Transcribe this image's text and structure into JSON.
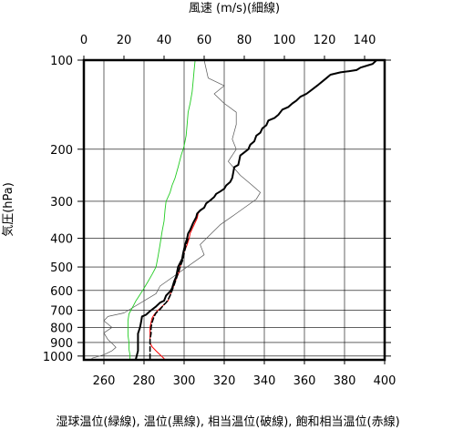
{
  "chart_data": {
    "type": "line",
    "title_top": "風速 (m/s)(細線)",
    "ylabel": "気圧(hPa)",
    "xlabel": "湿球温位(緑線), 温位(黒線), 相当温位(破線), 飽和相当温位(赤線)",
    "y_scale": "log",
    "y_range": [
      1030,
      100
    ],
    "y_ticks": [
      100,
      200,
      300,
      400,
      500,
      600,
      700,
      800,
      900,
      1000
    ],
    "x_bottom_range": [
      250,
      400
    ],
    "x_bottom_ticks": [
      260,
      280,
      300,
      320,
      340,
      360,
      380,
      400
    ],
    "x_top_range": [
      0,
      150
    ],
    "x_top_ticks": [
      0,
      20,
      40,
      60,
      80,
      100,
      120,
      140
    ],
    "colors": {
      "wind": "#555555",
      "wet_bulb": "#22cc22",
      "theta": "#000000",
      "theta_e": "#000000",
      "theta_es": "#ff0000"
    },
    "series": [
      {
        "key": "wind",
        "axis": "top",
        "points": [
          [
            4,
            1018
          ],
          [
            10,
            990
          ],
          [
            14,
            960
          ],
          [
            16,
            935
          ],
          [
            14,
            905
          ],
          [
            12,
            880
          ],
          [
            10,
            835
          ],
          [
            14,
            800
          ],
          [
            10,
            760
          ],
          [
            12,
            735
          ],
          [
            20,
            715
          ],
          [
            36,
            615
          ],
          [
            38,
            580
          ],
          [
            60,
            455
          ],
          [
            58,
            420
          ],
          [
            62,
            395
          ],
          [
            68,
            360
          ],
          [
            76,
            330
          ],
          [
            86,
            295
          ],
          [
            88,
            280
          ],
          [
            84,
            265
          ],
          [
            78,
            245
          ],
          [
            72,
            220
          ],
          [
            76,
            200
          ],
          [
            74,
            185
          ],
          [
            76,
            165
          ],
          [
            76,
            150
          ],
          [
            70,
            140
          ],
          [
            65,
            130
          ],
          [
            70,
            122
          ],
          [
            62,
            115
          ],
          [
            60,
            100
          ]
        ]
      },
      {
        "key": "wet_bulb",
        "axis": "bottom",
        "points": [
          [
            273,
            1020
          ],
          [
            273,
            990
          ],
          [
            272.5,
            950
          ],
          [
            272.5,
            900
          ],
          [
            272,
            850
          ],
          [
            272,
            800
          ],
          [
            272,
            760
          ],
          [
            272.5,
            720
          ],
          [
            274,
            690
          ],
          [
            276,
            650
          ],
          [
            278,
            620
          ],
          [
            280,
            590
          ],
          [
            282,
            560
          ],
          [
            284,
            530
          ],
          [
            286,
            500
          ],
          [
            287,
            460
          ],
          [
            288,
            420
          ],
          [
            289,
            380
          ],
          [
            290,
            350
          ],
          [
            290.5,
            320
          ],
          [
            291,
            300
          ],
          [
            293,
            280
          ],
          [
            294,
            265
          ],
          [
            295.5,
            250
          ],
          [
            297,
            230
          ],
          [
            298.5,
            210
          ],
          [
            300,
            195
          ],
          [
            301,
            180
          ],
          [
            301.5,
            165
          ],
          [
            302,
            150
          ],
          [
            303,
            140
          ],
          [
            304,
            128
          ],
          [
            304.5,
            118
          ],
          [
            305,
            108
          ],
          [
            305.5,
            100
          ]
        ]
      },
      {
        "key": "theta",
        "axis": "bottom",
        "points": [
          [
            276,
            1020
          ],
          [
            276.5,
            990
          ],
          [
            277,
            960
          ],
          [
            277,
            920
          ],
          [
            277,
            880
          ],
          [
            277,
            840
          ],
          [
            278,
            800
          ],
          [
            278.5,
            770
          ],
          [
            279,
            735
          ],
          [
            281,
            725
          ],
          [
            283,
            705
          ],
          [
            286,
            680
          ],
          [
            288,
            660
          ],
          [
            290,
            650
          ],
          [
            291,
            625
          ],
          [
            293,
            605
          ],
          [
            294,
            590
          ],
          [
            295,
            560
          ],
          [
            296,
            540
          ],
          [
            297,
            500
          ],
          [
            299,
            470
          ],
          [
            299.5,
            450
          ],
          [
            300.5,
            420
          ],
          [
            301.5,
            400
          ],
          [
            302,
            385
          ],
          [
            303,
            375
          ],
          [
            304.5,
            355
          ],
          [
            306,
            340
          ],
          [
            306.5,
            330
          ],
          [
            308,
            322
          ],
          [
            310,
            315
          ],
          [
            311,
            305
          ],
          [
            313,
            298
          ],
          [
            315,
            290
          ],
          [
            316,
            283
          ],
          [
            318,
            278
          ],
          [
            320,
            272
          ],
          [
            321,
            265
          ],
          [
            323,
            258
          ],
          [
            324,
            250
          ],
          [
            324.5,
            240
          ],
          [
            325,
            230
          ],
          [
            327,
            226
          ],
          [
            327.5,
            218
          ],
          [
            328,
            210
          ],
          [
            330,
            205
          ],
          [
            332,
            200
          ],
          [
            333,
            193
          ],
          [
            335,
            188
          ],
          [
            336,
            180
          ],
          [
            338,
            176
          ],
          [
            339,
            170
          ],
          [
            341,
            166
          ],
          [
            342,
            160
          ],
          [
            345,
            157
          ],
          [
            347,
            153
          ],
          [
            349,
            147
          ],
          [
            352,
            144
          ],
          [
            354,
            140
          ],
          [
            356,
            137
          ],
          [
            358,
            133
          ],
          [
            361,
            130
          ],
          [
            363,
            127
          ],
          [
            365,
            124
          ],
          [
            367,
            121
          ],
          [
            369,
            118
          ],
          [
            371,
            115
          ],
          [
            373,
            112
          ],
          [
            378,
            110
          ],
          [
            382,
            109
          ],
          [
            386,
            108
          ],
          [
            388,
            106
          ],
          [
            392,
            104
          ],
          [
            394,
            103
          ],
          [
            396,
            100
          ]
        ]
      },
      {
        "key": "theta_e",
        "axis": "bottom",
        "points": [
          [
            283,
            1020
          ],
          [
            283,
            990
          ],
          [
            283,
            960
          ],
          [
            283,
            920
          ],
          [
            283,
            880
          ],
          [
            283.5,
            840
          ],
          [
            283.5,
            800
          ],
          [
            284,
            770
          ],
          [
            285,
            735
          ],
          [
            286,
            715
          ],
          [
            288,
            695
          ],
          [
            290,
            670
          ],
          [
            291,
            660
          ],
          [
            292,
            645
          ],
          [
            293,
            625
          ],
          [
            294,
            600
          ],
          [
            295,
            575
          ],
          [
            296,
            550
          ],
          [
            297,
            525
          ],
          [
            298,
            500
          ],
          [
            299.5,
            470
          ],
          [
            300,
            450
          ],
          [
            301,
            420
          ],
          [
            302,
            400
          ]
        ]
      },
      {
        "key": "theta_es",
        "axis": "bottom",
        "points": [
          [
            290,
            1020
          ],
          [
            288,
            990
          ],
          [
            286,
            960
          ],
          [
            284,
            930
          ],
          [
            283,
            900
          ],
          [
            283,
            870
          ],
          [
            283,
            840
          ],
          [
            283,
            800
          ],
          [
            283.5,
            770
          ],
          [
            284,
            745
          ],
          [
            285,
            725
          ],
          [
            286.5,
            705
          ],
          [
            288,
            690
          ],
          [
            290,
            670
          ],
          [
            292,
            650
          ],
          [
            293,
            620
          ],
          [
            294,
            600
          ],
          [
            295,
            575
          ],
          [
            296,
            550
          ],
          [
            297.5,
            520
          ],
          [
            298,
            500
          ],
          [
            299,
            470
          ],
          [
            300,
            445
          ],
          [
            301.5,
            420
          ],
          [
            302.5,
            400
          ],
          [
            303,
            385
          ],
          [
            304,
            372
          ],
          [
            305,
            360
          ],
          [
            306.5,
            342
          ],
          [
            307,
            330
          ],
          [
            308,
            322
          ],
          [
            310,
            315
          ],
          [
            311,
            305
          ],
          [
            313,
            298
          ],
          [
            315,
            290
          ],
          [
            316,
            283
          ],
          [
            318,
            278
          ],
          [
            320,
            272
          ],
          [
            321,
            265
          ],
          [
            323,
            258
          ],
          [
            324,
            250
          ],
          [
            324.5,
            240
          ],
          [
            325,
            230
          ],
          [
            327,
            226
          ],
          [
            327.5,
            218
          ],
          [
            328,
            210
          ],
          [
            330,
            205
          ],
          [
            332,
            200
          ],
          [
            333,
            193
          ],
          [
            335,
            188
          ],
          [
            336,
            180
          ],
          [
            338,
            176
          ],
          [
            339,
            170
          ],
          [
            341,
            166
          ],
          [
            342,
            160
          ],
          [
            345,
            157
          ],
          [
            347,
            153
          ],
          [
            349,
            147
          ],
          [
            352,
            144
          ],
          [
            354,
            140
          ],
          [
            356,
            137
          ],
          [
            358,
            133
          ],
          [
            361,
            130
          ],
          [
            363,
            127
          ],
          [
            365,
            124
          ],
          [
            367,
            121
          ],
          [
            369,
            118
          ],
          [
            371,
            115
          ],
          [
            373,
            112
          ],
          [
            378,
            110
          ],
          [
            382,
            109
          ],
          [
            386,
            108
          ],
          [
            388,
            106
          ],
          [
            392,
            104
          ],
          [
            394,
            103
          ],
          [
            396,
            100
          ]
        ]
      }
    ]
  }
}
